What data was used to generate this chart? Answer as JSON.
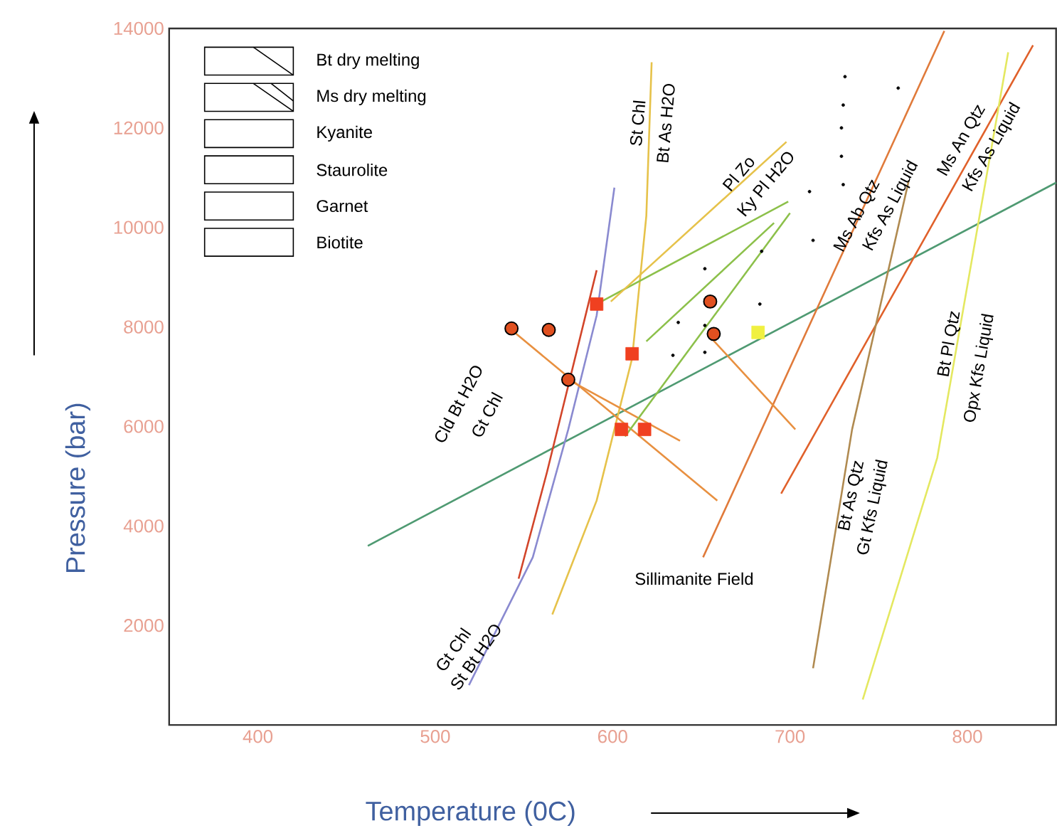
{
  "chart_data": {
    "type": "line",
    "xlabel": "Temperature (0C)",
    "ylabel": "Pressure (bar)",
    "xlim": [
      350,
      850
    ],
    "ylim": [
      0,
      14000
    ],
    "xticks": [
      400,
      500,
      600,
      700,
      800
    ],
    "yticks": [
      2000,
      4000,
      6000,
      8000,
      10000,
      12000,
      14000
    ],
    "series": [
      {
        "color": "#4f9a72",
        "x": [
          462,
          850
        ],
        "values": [
          3600,
          10900
        ]
      },
      {
        "color": "#8a8ad0",
        "x": [
          519,
          555,
          575,
          591,
          601
        ],
        "values": [
          800,
          3370,
          5940,
          8230,
          10800
        ]
      },
      {
        "color": "#d2452a",
        "x": [
          547,
          563,
          591
        ],
        "values": [
          2940,
          5080,
          9140
        ]
      },
      {
        "color": "#e6c24a",
        "x": [
          566,
          591,
          611,
          619,
          622
        ],
        "values": [
          2220,
          4510,
          7370,
          10230,
          13320
        ]
      },
      {
        "color": "#e07a3a",
        "x": [
          651,
          787
        ],
        "values": [
          3370,
          13950
        ]
      },
      {
        "color": "#e0602a",
        "x": [
          695,
          837
        ],
        "values": [
          4650,
          13660
        ]
      },
      {
        "color": "#b08a50",
        "x": [
          713,
          735,
          767
        ],
        "values": [
          1140,
          5940,
          10950
        ]
      },
      {
        "color": "#e4e860",
        "x": [
          741,
          783,
          823
        ],
        "values": [
          510,
          5370,
          13520
        ]
      },
      {
        "color": "#e89040",
        "x": [
          543,
          659
        ],
        "values": [
          7940,
          4510
        ]
      },
      {
        "color": "#e89040",
        "x": [
          575,
          638
        ],
        "values": [
          6940,
          5710
        ]
      },
      {
        "color": "#e89040",
        "x": [
          655,
          703
        ],
        "values": [
          7800,
          5940
        ]
      },
      {
        "color": "#8cc04a",
        "x": [
          591,
          699
        ],
        "values": [
          8460,
          10520
        ]
      },
      {
        "color": "#8cc04a",
        "x": [
          607,
          700
        ],
        "values": [
          5800,
          10290
        ]
      },
      {
        "color": "#8cc04a",
        "x": [
          619,
          691
        ],
        "values": [
          7710,
          10090
        ]
      },
      {
        "color": "#e6c24a",
        "x": [
          599,
          698
        ],
        "values": [
          8510,
          11720
        ]
      },
      {
        "type": "scatter",
        "marker": "circle",
        "color": "#e05020",
        "x": [
          543,
          564,
          575,
          655,
          657
        ],
        "values": [
          7970,
          7940,
          6940,
          8510,
          7860
        ]
      },
      {
        "type": "scatter",
        "marker": "square",
        "color": "#f04020",
        "x": [
          591,
          611,
          605,
          618
        ],
        "values": [
          8460,
          7460,
          5940,
          5940
        ]
      },
      {
        "type": "scatter",
        "marker": "square",
        "color": "#f0f040",
        "x": [
          682
        ],
        "values": [
          7890
        ]
      },
      {
        "type": "scatter",
        "marker": "dot",
        "color": "#000000",
        "x": [
          731,
          761,
          730,
          729,
          729,
          730,
          711,
          713,
          684,
          652,
          683,
          637,
          652,
          634,
          652
        ],
        "values": [
          13030,
          12800,
          12460,
          12000,
          11430,
          10860,
          10720,
          9740,
          9520,
          9170,
          8460,
          8090,
          8030,
          7430,
          7490
        ]
      }
    ],
    "annotations": [
      "Bt dry  melting",
      "Ms dry  melting",
      "Kyanite",
      "Staurolite",
      "Garnet",
      "Biotite",
      "Cld Bt H2O",
      "Gt Chl",
      "Gt Chl",
      "St Bt H2O",
      "St Chl",
      "Bt As H2O",
      "Pl Zo",
      "Ky Pl H2O",
      "Ms Ab Qtz",
      "Kfs As Liquid",
      "Ms An Qtz",
      "Kfs As Liquid",
      "Bt Pl Qtz",
      "Opx Kfs Liquid",
      "Bt As Qtz",
      "Gt Kfs Liquid",
      "Sillimanite Field"
    ]
  }
}
